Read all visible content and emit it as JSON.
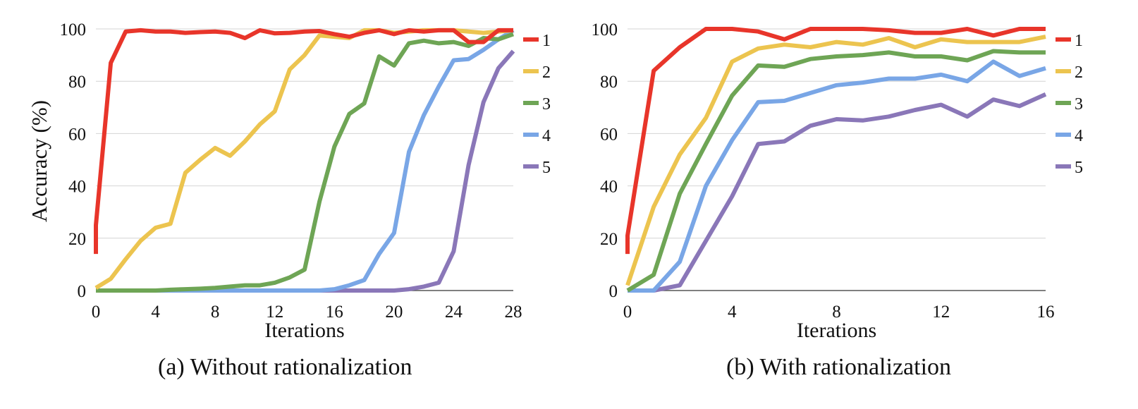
{
  "chart_data": [
    {
      "type": "line",
      "caption": "(a) Without rationalization",
      "xlabel": "Iterations",
      "ylabel": "Accuracy (%)",
      "xlim": [
        0,
        28
      ],
      "ylim": [
        0,
        100
      ],
      "xticks": [
        "0",
        "4",
        "8",
        "12",
        "16",
        "20",
        "24",
        "28"
      ],
      "yticks": [
        "0",
        "20",
        "40",
        "60",
        "80",
        "100"
      ],
      "grid": true,
      "legend_position": "right",
      "x": [
        0,
        1,
        2,
        3,
        4,
        5,
        6,
        7,
        8,
        9,
        10,
        11,
        12,
        13,
        14,
        15,
        16,
        17,
        18,
        19,
        20,
        21,
        22,
        23,
        24,
        25,
        26,
        27,
        28
      ],
      "series": [
        {
          "name": "1",
          "color": "#e8352a",
          "x0": [
            0,
            0
          ],
          "y0": [
            14,
            25
          ],
          "values": [
            25,
            87,
            99,
            99.5,
            99,
            99,
            98.5,
            98.8,
            99,
            98.5,
            96.5,
            99.5,
            98.3,
            98.5,
            99,
            99.2,
            98,
            97,
            98.5,
            99.5,
            98,
            99.5,
            99,
            99.5,
            99.5,
            95,
            95,
            99.5,
            99.5
          ]
        },
        {
          "name": "2",
          "color": "#ecc44f",
          "values": [
            1,
            4.5,
            12,
            19,
            24,
            25.5,
            45,
            50,
            54.5,
            51.5,
            57,
            63.5,
            68.5,
            84.5,
            90,
            97.5,
            97,
            96.5,
            99.5,
            99.5,
            98.5,
            99,
            99.5,
            99.5,
            99.5,
            99,
            98.5,
            99,
            99.5
          ]
        },
        {
          "name": "3",
          "color": "#6ea555",
          "values": [
            0,
            0,
            0,
            0,
            0,
            0.3,
            0.5,
            0.7,
            1,
            1.5,
            2,
            2,
            3,
            5,
            8,
            34,
            55,
            67.5,
            71.5,
            89.5,
            86,
            94.5,
            95.5,
            94.5,
            95,
            93.5,
            96.5,
            96,
            98
          ]
        },
        {
          "name": "4",
          "color": "#79a6e6",
          "values": [
            0,
            0,
            0,
            0,
            0,
            0,
            0,
            0,
            0,
            0,
            0,
            0,
            0,
            0,
            0,
            0,
            0.5,
            2,
            4,
            14,
            22,
            53,
            67,
            78,
            88,
            88.5,
            92,
            96,
            99.5
          ]
        },
        {
          "name": "5",
          "color": "#8a77b8",
          "values": [
            0,
            0,
            0,
            0,
            0,
            0,
            0,
            0,
            0,
            0,
            0,
            0,
            0,
            0,
            0,
            0,
            0,
            0,
            0,
            0,
            0,
            0.5,
            1.5,
            3,
            15,
            48,
            72,
            85,
            91.5
          ]
        }
      ]
    },
    {
      "type": "line",
      "caption": "(b) With rationalization",
      "xlabel": "Iterations",
      "ylabel": "",
      "xlim": [
        0,
        16
      ],
      "ylim": [
        0,
        100
      ],
      "xticks": [
        "0",
        "4",
        "8",
        "12",
        "16"
      ],
      "yticks": [
        "0",
        "20",
        "40",
        "60",
        "80",
        "100"
      ],
      "grid": true,
      "legend_position": "right",
      "x": [
        0,
        1,
        2,
        3,
        4,
        5,
        6,
        7,
        8,
        9,
        10,
        11,
        12,
        13,
        14,
        15,
        16
      ],
      "series": [
        {
          "name": "1",
          "color": "#e8352a",
          "x0": [
            0,
            0
          ],
          "y0": [
            14,
            21
          ],
          "values": [
            21,
            84,
            93,
            100,
            100,
            99,
            96,
            100,
            100,
            100,
            99.5,
            98.5,
            98.5,
            100,
            97.5,
            100,
            100
          ]
        },
        {
          "name": "2",
          "color": "#ecc44f",
          "values": [
            2,
            32,
            52,
            66,
            87.5,
            92.5,
            94,
            93,
            95,
            94,
            96.5,
            93,
            96,
            95,
            95,
            95,
            97
          ]
        },
        {
          "name": "3",
          "color": "#6ea555",
          "values": [
            0,
            6,
            37,
            56,
            74.5,
            86,
            85.5,
            88.5,
            89.5,
            90,
            91,
            89.5,
            89.5,
            88,
            91.5,
            91,
            91
          ]
        },
        {
          "name": "4",
          "color": "#79a6e6",
          "values": [
            0,
            0,
            11,
            40,
            57.5,
            72,
            72.5,
            75.5,
            78.5,
            79.5,
            81,
            81,
            82.5,
            80,
            87.5,
            82,
            85
          ]
        },
        {
          "name": "5",
          "color": "#8a77b8",
          "values": [
            0,
            0,
            2,
            19,
            36,
            56,
            57,
            63,
            65.5,
            65,
            66.5,
            69,
            71,
            66.5,
            73,
            70.5,
            75
          ]
        }
      ]
    }
  ]
}
